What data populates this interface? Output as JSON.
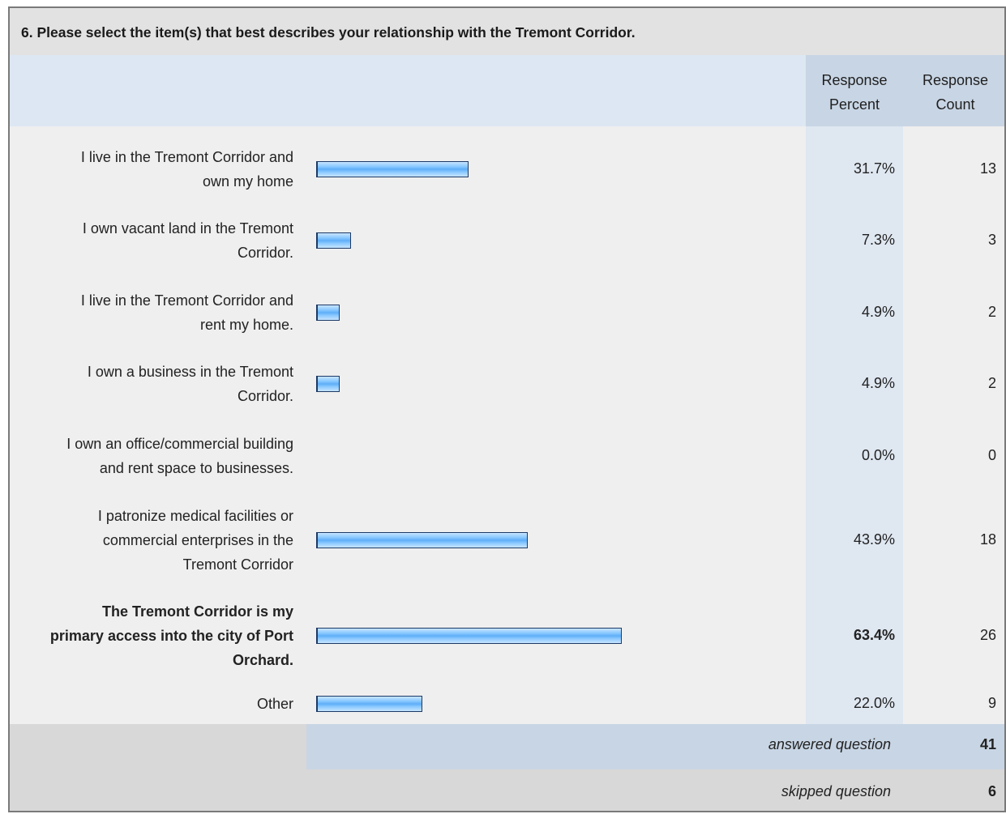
{
  "question": {
    "title": "6. Please select the item(s) that best describes your relationship with the Tremont Corridor."
  },
  "headers": {
    "percent_line1": "Response",
    "percent_line2": "Percent",
    "count_line1": "Response",
    "count_line2": "Count"
  },
  "chart_data": {
    "type": "bar",
    "orientation": "horizontal",
    "categories": [
      "I live in the Tremont Corridor and own my home",
      "I own vacant land in the Tremont Corridor.",
      "I live in the Tremont Corridor and rent my home.",
      "I own a business in the Tremont Corridor.",
      "I own an office/commercial building and rent space to businesses.",
      "I patronize medical facilities or commercial enterprises in the Tremont Corridor",
      "The Tremont Corridor is my primary access into the city of Port Orchard.",
      "Other"
    ],
    "series": [
      {
        "name": "Response Percent",
        "values": [
          31.7,
          7.3,
          4.9,
          4.9,
          0.0,
          43.9,
          63.4,
          22.0
        ]
      },
      {
        "name": "Response Count",
        "values": [
          13,
          3,
          2,
          2,
          0,
          18,
          26,
          9
        ]
      }
    ],
    "xlim": [
      0,
      100
    ]
  },
  "rows": [
    {
      "label_lines": [
        "I live in the Tremont Corridor and",
        "own my home"
      ],
      "percent": 31.7,
      "percent_text": "31.7%",
      "count_text": "13",
      "bold": false
    },
    {
      "label_lines": [
        "I own vacant land in the Tremont",
        "Corridor."
      ],
      "percent": 7.3,
      "percent_text": "7.3%",
      "count_text": "3",
      "bold": false
    },
    {
      "label_lines": [
        "I live in the Tremont Corridor and",
        "rent my home."
      ],
      "percent": 4.9,
      "percent_text": "4.9%",
      "count_text": "2",
      "bold": false
    },
    {
      "label_lines": [
        "I own a business in the Tremont",
        "Corridor."
      ],
      "percent": 4.9,
      "percent_text": "4.9%",
      "count_text": "2",
      "bold": false
    },
    {
      "label_lines": [
        "I own an office/commercial building",
        "and rent space to businesses."
      ],
      "percent": 0.0,
      "percent_text": "0.0%",
      "count_text": "0",
      "bold": false
    },
    {
      "label_lines": [
        "I patronize medical facilities or",
        "commercial enterprises in the",
        "Tremont Corridor"
      ],
      "percent": 43.9,
      "percent_text": "43.9%",
      "count_text": "18",
      "bold": false
    },
    {
      "label_lines": [
        "The Tremont Corridor is my",
        "primary access into the city of Port",
        "Orchard."
      ],
      "percent": 63.4,
      "percent_text": "63.4%",
      "count_text": "26",
      "bold": true
    },
    {
      "label_lines": [
        "Other"
      ],
      "percent": 22.0,
      "percent_text": "22.0%",
      "count_text": "9",
      "bold": false
    }
  ],
  "footer": {
    "answered_label": "answered question",
    "answered_value": "41",
    "skipped_label": "skipped question",
    "skipped_value": "6"
  },
  "colors": {
    "bar_fill": "#8ccaff",
    "bar_border": "#1d3a66",
    "header_band": "#c8d5e4"
  }
}
